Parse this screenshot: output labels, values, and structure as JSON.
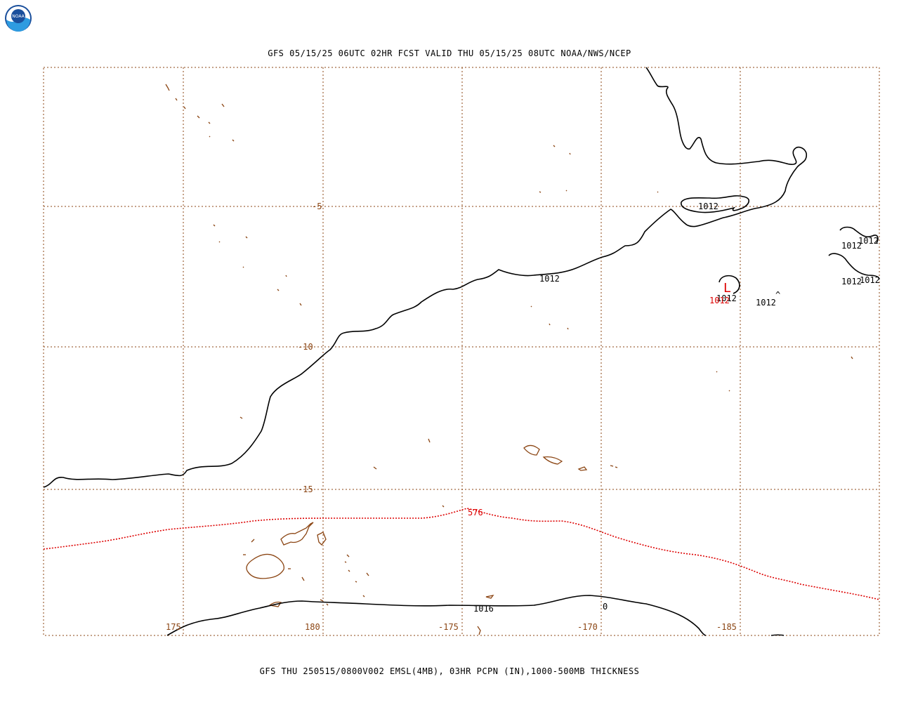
{
  "header": {
    "agency": "NOAA",
    "title": "GFS 05/15/25 06UTC 02HR FCST VALID THU 05/15/25 08UTC NOAA/NWS/NCEP"
  },
  "footer": {
    "caption": "GFS THU 250515/0800V002 EMSL(4MB), 03HR PCPN (IN),1000-500MB THICKNESS"
  },
  "map": {
    "colors": {
      "grid": "#8b4513",
      "coast": "#8b4513",
      "isobar": "#000000",
      "thickness": "#dd0000"
    },
    "lat_labels": [
      "-5",
      "-10",
      "-15"
    ],
    "lon_labels": [
      "175",
      "180",
      "-175",
      "-170",
      "-185"
    ],
    "isobar_labels": [
      "1012",
      "1012",
      "1012",
      "1012",
      "1012",
      "1012",
      "1012",
      "1012",
      "1012",
      "1016",
      "0"
    ],
    "thickness_labels": [
      "576",
      "1012"
    ],
    "low_symbol": "L",
    "high_symbol": "^"
  }
}
